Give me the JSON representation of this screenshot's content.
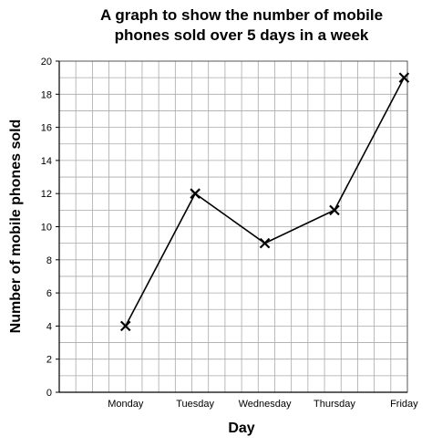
{
  "chart_data": {
    "type": "line",
    "title_lines": [
      "A graph to show the number of mobile",
      "phones sold over 5 days in a week"
    ],
    "xlabel": "Day",
    "ylabel": "Number of mobile phones sold",
    "categories": [
      "Monday",
      "Tuesday",
      "Wednesday",
      "Thursday",
      "Friday"
    ],
    "values": [
      4,
      12,
      9,
      11,
      19
    ],
    "ylim": [
      0,
      20
    ],
    "ytick_step": 2,
    "grid": true,
    "marker": "x",
    "line_color": "#000000",
    "grid_color": "#aaaaaa"
  }
}
